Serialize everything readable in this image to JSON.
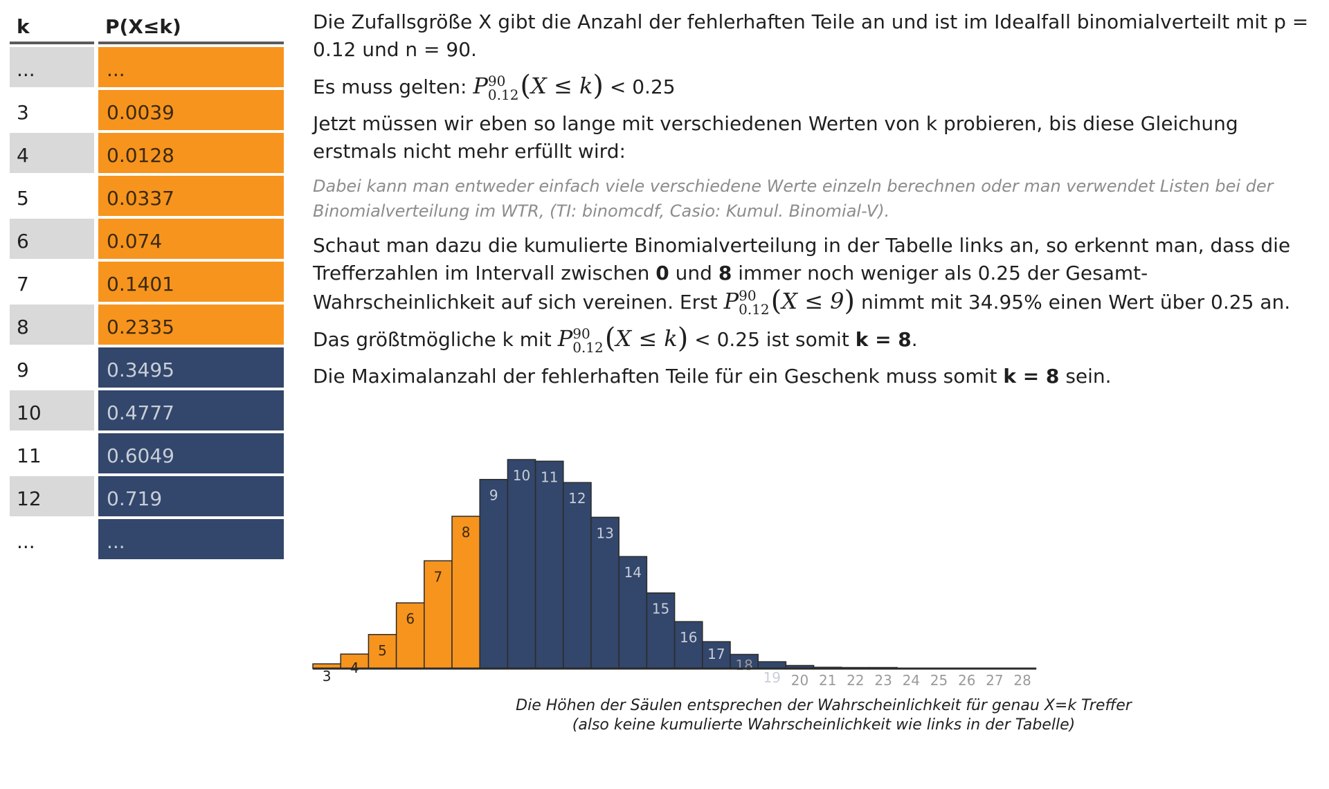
{
  "table": {
    "header_k": "k",
    "header_p": "P(X≤k)",
    "rows": [
      {
        "k": "...",
        "p": "...",
        "color": "orange"
      },
      {
        "k": "3",
        "p": "0.0039",
        "color": "orange"
      },
      {
        "k": "4",
        "p": "0.0128",
        "color": "orange"
      },
      {
        "k": "5",
        "p": "0.0337",
        "color": "orange"
      },
      {
        "k": "6",
        "p": "0.074",
        "color": "orange"
      },
      {
        "k": "7",
        "p": "0.1401",
        "color": "orange"
      },
      {
        "k": "8",
        "p": "0.2335",
        "color": "orange"
      },
      {
        "k": "9",
        "p": "0.3495",
        "color": "navy"
      },
      {
        "k": "10",
        "p": "0.4777",
        "color": "navy"
      },
      {
        "k": "11",
        "p": "0.6049",
        "color": "navy"
      },
      {
        "k": "12",
        "p": "0.719",
        "color": "navy"
      },
      {
        "k": "...",
        "p": "...",
        "color": "navy"
      }
    ]
  },
  "text": {
    "p1": "Die Zufallsgröße X gibt die Anzahl der fehlerhaften Teile an und ist im Idealfall binomialverteilt mit p = 0.12 und n = 90.",
    "p2_prefix": "Es muss gelten:",
    "p2_suffix": "< 0.25",
    "p3": "Jetzt müssen wir eben so lange mit verschiedenen Werten von k probieren, bis diese Gleichung erstmals nicht mehr erfüllt wird:",
    "note": "Dabei kann man entweder einfach viele verschiedene Werte einzeln berechnen oder man verwendet Listen bei der Binomialverteilung im WTR, (TI: binomcdf, Casio: Kumul. Binomial-V).",
    "p4_a": "Schaut man dazu die kumulierte Binomialverteilung in der Tabelle links an, so erkennt man, dass die Trefferzahlen im Intervall zwischen",
    "p4_b0": "0",
    "p4_c": "und",
    "p4_d8": "8",
    "p4_e": "immer noch weniger als 0.25 der Gesamt-Wahrscheinlichkeit auf sich vereinen. Erst",
    "p4_f": "nimmt mit 34.95% einen Wert über 0.25 an.",
    "p5_a": "Das größtmögliche k mit",
    "p5_b": "< 0.25 ist somit",
    "p5_c": "k = 8",
    "p5_d": ".",
    "p6_a": "Die Maximalanzahl der fehlerhaften Teile für ein Geschenk muss somit",
    "p6_b": "k = 8",
    "p6_c": "sein."
  },
  "math": {
    "P": "P",
    "sup": "90",
    "sub": "0.12",
    "open": "(",
    "close": ")",
    "inner_k": "X ≤ k",
    "inner_9": "X ≤ 9"
  },
  "chart_data": {
    "type": "bar",
    "categories": [
      "3",
      "4",
      "5",
      "6",
      "7",
      "8",
      "9",
      "10",
      "11",
      "12",
      "13",
      "14",
      "15",
      "16",
      "17",
      "18",
      "19",
      "20",
      "21",
      "22",
      "23",
      "24",
      "25",
      "26",
      "27",
      "28"
    ],
    "values": [
      0.0029,
      0.0089,
      0.0209,
      0.0403,
      0.0661,
      0.0934,
      0.116,
      0.1282,
      0.1272,
      0.1141,
      0.0928,
      0.0687,
      0.0464,
      0.0288,
      0.0165,
      0.0087,
      0.0042,
      0.0019,
      0.0008,
      0.0003,
      0.0001,
      0.0,
      0.0,
      0.0,
      0.0,
      0.0
    ],
    "highlight_upto": 8,
    "colors": {
      "orange": "#f7941e",
      "navy": "#33466b",
      "inside_label_orange": "#3a2a10",
      "inside_label_navy": "#c8ced8",
      "outside_label": "#9a9a9a"
    },
    "caption_line1": "Die Höhen der Säulen entsprechen der Wahrscheinlichkeit für genau X=k Treffer",
    "caption_line2": "(also keine kumulierte Wahrscheinlichkeit wie links in der Tabelle)"
  }
}
